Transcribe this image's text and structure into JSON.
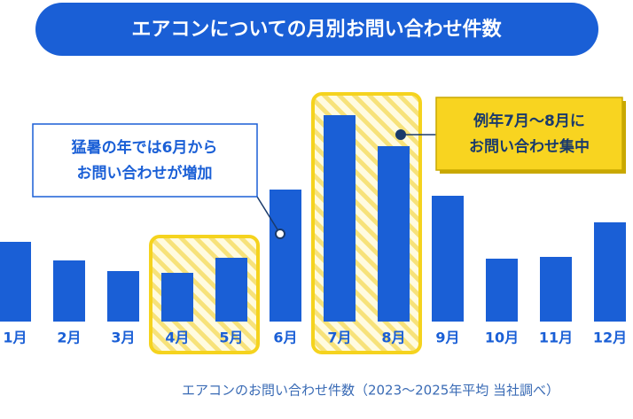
{
  "chart_data": {
    "type": "bar",
    "title": "エアコンについての月別お問い合わせ件数",
    "categories": [
      "1月",
      "2月",
      "3月",
      "4月",
      "5月",
      "6月",
      "7月",
      "8月",
      "9月",
      "10月",
      "11月",
      "12月"
    ],
    "values": [
      90,
      69,
      57,
      55,
      72,
      149,
      233,
      198,
      142,
      71,
      73,
      112
    ],
    "color": "#1a5fd6",
    "ylim": [
      0,
      250
    ],
    "highlight_groups": [
      [
        3,
        4
      ],
      [
        6,
        7
      ]
    ],
    "annotations": [
      {
        "lines": [
          "猛暑の年では6月から",
          "お問い合わせが増加"
        ]
      },
      {
        "lines": [
          "例年7月～8月に",
          "お問い合わせ集中"
        ]
      }
    ],
    "note": "エアコンのお問い合わせ件数（2023～2025年平均 当社調べ）"
  }
}
